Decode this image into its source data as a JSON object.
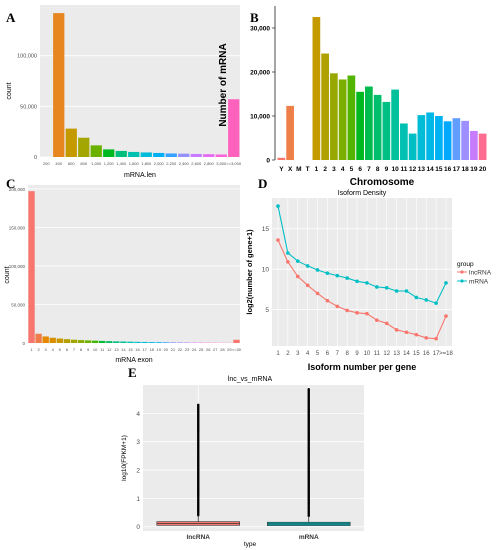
{
  "chart_data": [
    {
      "id": "A",
      "type": "bar",
      "panel_label": "A",
      "xlabel": "mRNA.len",
      "ylabel": "count",
      "categories": [
        "200",
        "400",
        "600",
        "800",
        "1,000",
        "1,200",
        "1,400",
        "1,600",
        "1,800",
        "2,000",
        "2,200",
        "2,400",
        "2,600",
        "2,800",
        "3,000",
        ">=3,000"
      ],
      "tick_labels": [
        "200",
        "400",
        "600",
        "800",
        "1,000",
        "1,200",
        "1,400",
        "1,600",
        "1,800",
        "2,000",
        "2,200",
        "2,400",
        "2,600",
        "2,800",
        "3,000",
        ">=3,000"
      ],
      "values": [
        0,
        142000,
        28000,
        19000,
        11500,
        7500,
        6000,
        5000,
        4500,
        4000,
        3500,
        3300,
        3000,
        2800,
        2500,
        57000
      ],
      "colors": [
        "#f8766d",
        "#e7851e",
        "#c49a00",
        "#a3a500",
        "#6bb100",
        "#00b81f",
        "#00bf7d",
        "#00c0af",
        "#00bcd8",
        "#00b0f6",
        "#35a2ff",
        "#9590ff",
        "#c77cff",
        "#e76bf3",
        "#fa62db",
        "#ff62bc"
      ],
      "ylim": [
        0,
        150000
      ],
      "yticks": [
        0,
        50000,
        100000
      ],
      "ytick_labels": [
        "0",
        "50,000",
        "100,000"
      ],
      "grid": false
    },
    {
      "id": "B",
      "type": "bar",
      "panel_label": "B",
      "xlabel": "Chromosome",
      "ylabel": "Number of mRNA",
      "categories": [
        "Y",
        "X",
        "M",
        "T",
        "1",
        "2",
        "3",
        "4",
        "5",
        "6",
        "7",
        "8",
        "9",
        "10",
        "11",
        "12",
        "13",
        "14",
        "15",
        "16",
        "17",
        "18",
        "19",
        "20"
      ],
      "values": [
        500,
        12300,
        0,
        0,
        32500,
        24200,
        19700,
        18300,
        19200,
        15500,
        16700,
        14800,
        13200,
        16000,
        8300,
        6000,
        10200,
        10800,
        10000,
        8800,
        9500,
        8900,
        6600,
        6000
      ],
      "colors": [
        "#f8766d",
        "#ef7f49",
        "#e38900",
        "#d59100",
        "#c49a00",
        "#b0a100",
        "#99a800",
        "#7cae00",
        "#53b400",
        "#00b81f",
        "#00bb4e",
        "#00be6c",
        "#00c086",
        "#00c19c",
        "#00c0b2",
        "#00bfc4",
        "#00bcd6",
        "#00b8e7",
        "#00b2f3",
        "#00a9ff",
        "#619cff",
        "#9d8fff",
        "#c77cff",
        "#ff6c91"
      ],
      "ylim": [
        0,
        35000
      ],
      "yticks": [
        0,
        10000,
        20000,
        30000
      ],
      "ytick_labels": [
        "0",
        "10,000",
        "20,000",
        "30,000"
      ],
      "grid": false
    },
    {
      "id": "C",
      "type": "bar",
      "panel_label": "C",
      "xlabel": "mRNA exon",
      "ylabel": "count",
      "categories": [
        "1",
        "2",
        "3",
        "4",
        "5",
        "6",
        "7",
        "8",
        "9",
        "10",
        "11",
        "12",
        "13",
        "14",
        "15",
        "16",
        "17",
        "18",
        "19",
        "20",
        "21",
        "22",
        "23",
        "24",
        "25",
        "26",
        "27",
        "28",
        "29",
        ">=30"
      ],
      "tick_labels": [
        "1",
        "2",
        "3",
        "4",
        "5",
        "6",
        "7",
        "8",
        "9",
        "10",
        "11",
        "12",
        "13",
        "14",
        "15",
        "16",
        "17",
        "18",
        "19",
        "20",
        "21",
        "22",
        "23",
        "24",
        "25",
        "26",
        "27",
        "28",
        "29",
        ">=30"
      ],
      "values": [
        197000,
        12000,
        8500,
        6800,
        5800,
        5000,
        4300,
        3800,
        3400,
        3000,
        2700,
        2400,
        2100,
        1900,
        1700,
        1500,
        1350,
        1200,
        1050,
        950,
        850,
        750,
        650,
        580,
        500,
        430,
        380,
        330,
        290,
        4200
      ],
      "colors": [
        "#f8766d",
        "#f07c4a",
        "#e58700",
        "#d89000",
        "#c99800",
        "#b79f00",
        "#a3a500",
        "#8aab00",
        "#6bb100",
        "#3fb600",
        "#00ba38",
        "#00bd5c",
        "#00bf7d",
        "#00c098",
        "#00c1b0",
        "#00c0c6",
        "#00bdd8",
        "#00b8e7",
        "#00b0f6",
        "#35a2ff",
        "#7b93ff",
        "#a386ff",
        "#c77cff",
        "#df70f8",
        "#f066ea",
        "#fb61d7",
        "#ff61c3",
        "#ff64ad",
        "#ff6a96",
        "#f8766d"
      ],
      "ylim": [
        0,
        205000
      ],
      "yticks": [
        0,
        50000,
        100000,
        150000,
        200000
      ],
      "ytick_labels": [
        "0",
        "50,000",
        "100,000",
        "150,000",
        "200,000"
      ],
      "grid": false
    },
    {
      "id": "D",
      "type": "line",
      "panel_label": "D",
      "title": "Isoform Density",
      "xlabel": "Isoform number per gene",
      "ylabel": "log2(number of gene+1)",
      "categories": [
        "1",
        "2",
        "3",
        "4",
        "5",
        "6",
        "7",
        "8",
        "9",
        "10",
        "11",
        "12",
        "13",
        "14",
        "15",
        "16",
        "17",
        ">=18"
      ],
      "series": [
        {
          "name": "lncRNA",
          "color": "#f8766d",
          "values": [
            13.6,
            10.9,
            9.1,
            8.0,
            7.0,
            6.1,
            5.4,
            4.9,
            4.6,
            4.5,
            3.7,
            3.3,
            2.5,
            2.2,
            1.9,
            1.5,
            1.4,
            4.2
          ]
        },
        {
          "name": "mRNA",
          "color": "#00bfc4",
          "values": [
            17.8,
            12.0,
            11.0,
            10.4,
            9.9,
            9.5,
            9.2,
            8.9,
            8.5,
            8.3,
            7.8,
            7.7,
            7.3,
            7.3,
            6.5,
            6.2,
            5.8,
            8.3
          ]
        }
      ],
      "ylim": [
        0.5,
        18.8
      ],
      "yticks": [
        5,
        10,
        15
      ],
      "ytick_labels": [
        "5",
        "10",
        "15"
      ],
      "legend": {
        "title": "group",
        "position": "right"
      },
      "grid": true
    },
    {
      "id": "E",
      "type": "boxplot",
      "panel_label": "E",
      "title": "lnc_vs_mRNA",
      "xlabel": "type",
      "ylabel": "log10(FPKM+1)",
      "categories": [
        "lncRNA",
        "mRNA"
      ],
      "boxes": [
        {
          "name": "lncRNA",
          "color": "#f8766d",
          "q1": 0.05,
          "median": 0.12,
          "q3": 0.18,
          "whisker_high": 0.4,
          "outlier_max": 4.3
        },
        {
          "name": "mRNA",
          "color": "#00bfc4",
          "q1": 0.04,
          "median": 0.1,
          "q3": 0.16,
          "whisker_high": 0.38,
          "outlier_max": 4.85
        }
      ],
      "ylim": [
        -0.15,
        5.0
      ],
      "yticks": [
        0,
        1,
        2,
        3,
        4
      ],
      "ytick_labels": [
        "0",
        "1",
        "2",
        "3",
        "4"
      ],
      "grid": true
    }
  ]
}
